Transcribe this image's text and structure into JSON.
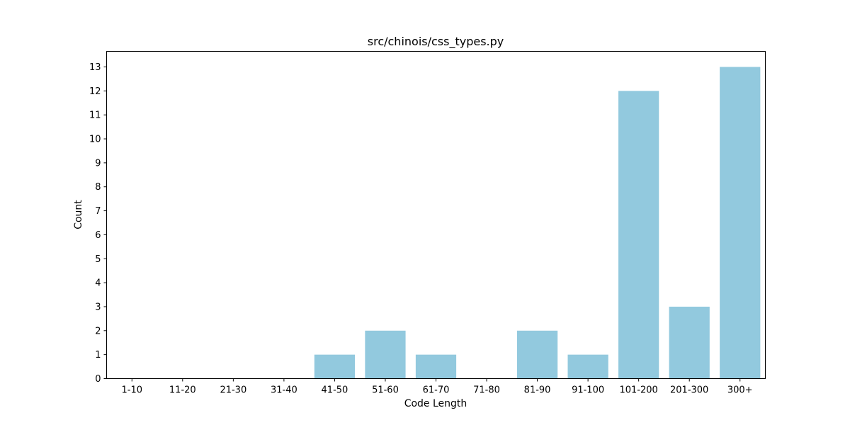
{
  "chart_data": {
    "type": "bar",
    "title": "src/chinois/css_types.py",
    "xlabel": "Code Length",
    "ylabel": "Count",
    "categories": [
      "1-10",
      "11-20",
      "21-30",
      "31-40",
      "41-50",
      "51-60",
      "61-70",
      "71-80",
      "81-90",
      "91-100",
      "101-200",
      "201-300",
      "300+"
    ],
    "values": [
      0,
      0,
      0,
      0,
      1,
      2,
      1,
      0,
      2,
      1,
      12,
      3,
      13
    ],
    "ylim": [
      0,
      13.65
    ],
    "yticks": [
      0,
      1,
      2,
      3,
      4,
      5,
      6,
      7,
      8,
      9,
      10,
      11,
      12,
      13
    ],
    "bar_color": "#92c9de",
    "grid": false
  }
}
